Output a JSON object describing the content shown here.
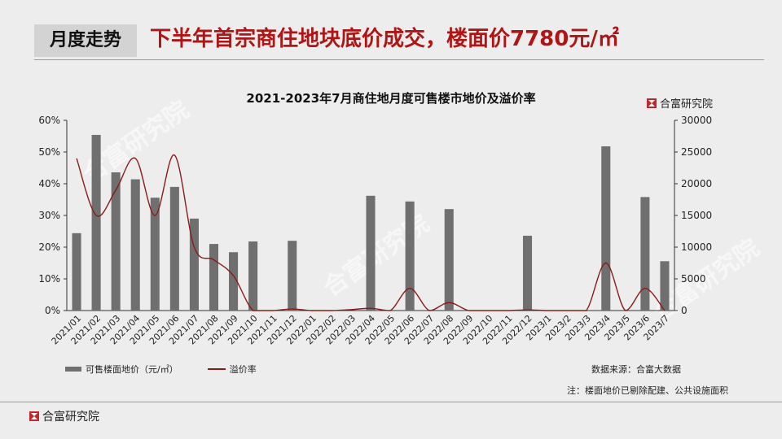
{
  "header": {
    "tag": "月度走势",
    "headline": "下半年首宗商住地块底价成交，楼面价7780元/㎡"
  },
  "brand": {
    "name": "合富研究院",
    "icon": "hefu-logo-icon",
    "accent": "#c0282d"
  },
  "watermarks": [
    "合富研究院",
    "合富研究院",
    "合富研究院"
  ],
  "footer": {
    "source": "数据来源：合富大数据",
    "note": "注：楼面地价已剔除配建、公共设施面积"
  },
  "chart_data": {
    "type": "bar",
    "title": "2021-2023年7月商住地月度可售楼市地价及溢价率",
    "categories": [
      "2021/01",
      "2021/02",
      "2021/03",
      "2021/04",
      "2021/05",
      "2021/06",
      "2021/07",
      "2021/08",
      "2021/09",
      "2021/10",
      "2021/11",
      "2021/12",
      "2022/01",
      "2022/02",
      "2022/03",
      "2022/04",
      "2022/05",
      "2022/06",
      "2022/07",
      "2022/08",
      "2022/09",
      "2022/10",
      "2022/11",
      "2022/12",
      "2023/1",
      "2023/2",
      "2023/3",
      "2023/4",
      "2023/5",
      "2023/6",
      "2023/7"
    ],
    "series": [
      {
        "name": "可售楼面地价（元/㎡）",
        "type": "bar",
        "axis": "right",
        "color": "#6f6f6f",
        "values": [
          12200,
          27700,
          21800,
          20700,
          17800,
          19500,
          14500,
          10500,
          9200,
          10900,
          0,
          11000,
          0,
          0,
          0,
          18100,
          0,
          17200,
          0,
          16000,
          0,
          0,
          0,
          11800,
          0,
          0,
          0,
          25900,
          0,
          17900,
          7780
        ]
      },
      {
        "name": "溢价率",
        "type": "line",
        "axis": "left",
        "color": "#8b1a1a",
        "values": [
          0.48,
          0.3,
          0.38,
          0.48,
          0.3,
          0.49,
          0.2,
          0.16,
          0.11,
          0,
          0,
          0.005,
          0,
          0,
          0.003,
          0.007,
          0,
          0.07,
          0,
          0.025,
          0,
          0,
          0,
          0.002,
          0,
          0,
          0,
          0.15,
          0,
          0.07,
          0
        ]
      }
    ],
    "y_left": {
      "min": 0,
      "max": 0.6,
      "ticks": [
        "0%",
        "10%",
        "20%",
        "30%",
        "40%",
        "50%",
        "60%"
      ]
    },
    "y_right": {
      "min": 0,
      "max": 30000,
      "ticks": [
        "0",
        "5000",
        "10000",
        "15000",
        "20000",
        "25000",
        "30000"
      ]
    },
    "grid": false,
    "legend_position": "bottom-left"
  }
}
